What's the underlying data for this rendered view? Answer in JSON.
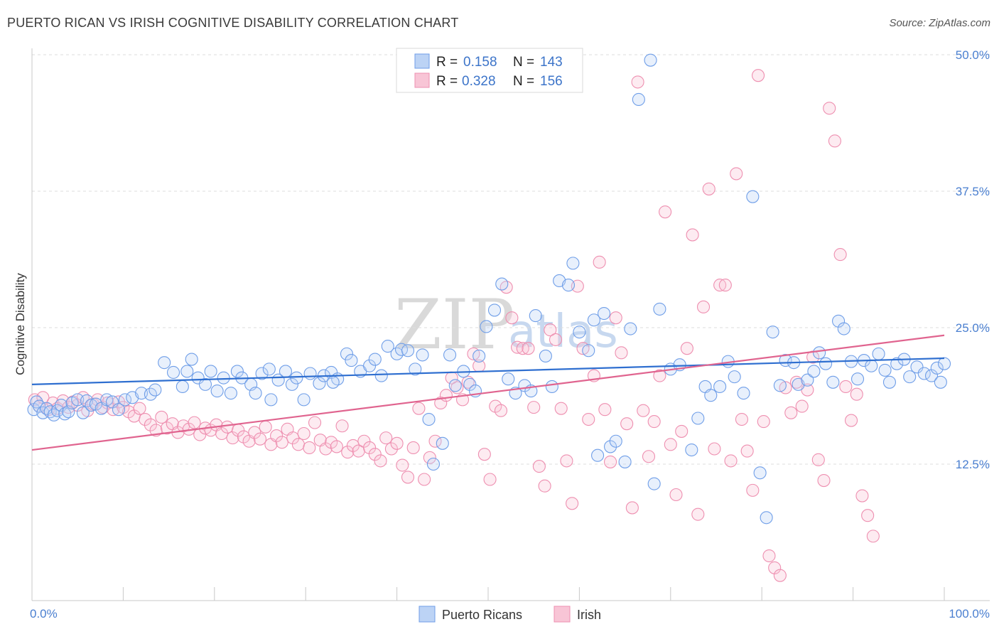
{
  "header": {
    "title": "PUERTO RICAN VS IRISH COGNITIVE DISABILITY CORRELATION CHART",
    "source": "Source: ZipAtlas.com"
  },
  "watermark": {
    "left": "ZIP",
    "right": "atlas"
  },
  "legend": {
    "r_label": "R =",
    "n_label": "N =",
    "entries": [
      {
        "r": "0.158",
        "n": "143"
      },
      {
        "r": "0.328",
        "n": "156"
      }
    ]
  },
  "chart_data": {
    "type": "scatter",
    "title": "PUERTO RICAN VS IRISH COGNITIVE DISABILITY CORRELATION CHART",
    "xlabel": "",
    "ylabel": "Cognitive Disability",
    "xlim": [
      0,
      100
    ],
    "ylim": [
      0,
      50
    ],
    "x_tick_labels": [
      "0.0%",
      "100.0%"
    ],
    "y_ticks": [
      12.5,
      25.0,
      37.5,
      50.0
    ],
    "y_tick_labels": [
      "12.5%",
      "25.0%",
      "37.5%",
      "50.0%"
    ],
    "grid": "horizontal dashed",
    "legend_position": "top-center",
    "colors": {
      "blue": "#6f9ee8",
      "pink": "#ee8fb0",
      "blue_line": "#2f6fd0",
      "pink_line": "#e0648f"
    },
    "series": [
      {
        "name": "Puerto Ricans",
        "color": "#6f9ee8",
        "trend": {
          "x": [
            0,
            100
          ],
          "y": [
            19.8,
            22.2
          ]
        },
        "points": [
          [
            0.2,
            17.5
          ],
          [
            0.5,
            18.2
          ],
          [
            0.8,
            17.8
          ],
          [
            1.2,
            17.2
          ],
          [
            1.6,
            17.6
          ],
          [
            2.0,
            17.3
          ],
          [
            2.4,
            17.0
          ],
          [
            2.8,
            17.4
          ],
          [
            3.2,
            17.9
          ],
          [
            3.6,
            17.1
          ],
          [
            4.0,
            17.3
          ],
          [
            4.4,
            18.1
          ],
          [
            5.0,
            18.4
          ],
          [
            5.6,
            17.2
          ],
          [
            6.0,
            18.3
          ],
          [
            6.5,
            17.9
          ],
          [
            7.0,
            18.0
          ],
          [
            7.6,
            17.6
          ],
          [
            8.2,
            18.4
          ],
          [
            8.8,
            18.2
          ],
          [
            9.5,
            17.5
          ],
          [
            10.2,
            18.4
          ],
          [
            11.0,
            18.6
          ],
          [
            12.0,
            19.0
          ],
          [
            13.0,
            18.9
          ],
          [
            13.5,
            19.3
          ],
          [
            14.5,
            21.8
          ],
          [
            15.5,
            20.9
          ],
          [
            16.5,
            19.6
          ],
          [
            17.0,
            21.0
          ],
          [
            17.5,
            22.1
          ],
          [
            18.2,
            20.4
          ],
          [
            19.0,
            19.8
          ],
          [
            19.6,
            21.0
          ],
          [
            20.3,
            19.2
          ],
          [
            21.0,
            20.4
          ],
          [
            21.8,
            19.0
          ],
          [
            22.5,
            21.0
          ],
          [
            23.0,
            20.4
          ],
          [
            24.0,
            19.8
          ],
          [
            24.5,
            19.0
          ],
          [
            25.2,
            20.8
          ],
          [
            26.0,
            21.2
          ],
          [
            27.0,
            20.2
          ],
          [
            27.8,
            21.0
          ],
          [
            28.5,
            19.8
          ],
          [
            29.0,
            20.4
          ],
          [
            29.8,
            18.4
          ],
          [
            30.5,
            20.8
          ],
          [
            31.5,
            19.9
          ],
          [
            32.0,
            20.6
          ],
          [
            32.8,
            20.9
          ],
          [
            33.5,
            20.3
          ],
          [
            34.5,
            22.6
          ],
          [
            35.0,
            22.0
          ],
          [
            36.0,
            21.0
          ],
          [
            37.0,
            21.5
          ],
          [
            37.6,
            22.1
          ],
          [
            38.3,
            20.6
          ],
          [
            39.0,
            23.3
          ],
          [
            40.0,
            22.6
          ],
          [
            40.5,
            23.0
          ],
          [
            41.2,
            22.9
          ],
          [
            42.0,
            21.2
          ],
          [
            42.8,
            22.5
          ],
          [
            43.5,
            16.6
          ],
          [
            44.0,
            12.5
          ],
          [
            45.0,
            14.4
          ],
          [
            45.8,
            22.5
          ],
          [
            46.4,
            19.7
          ],
          [
            47.3,
            21.0
          ],
          [
            48.0,
            19.8
          ],
          [
            49.0,
            22.4
          ],
          [
            49.8,
            25.1
          ],
          [
            50.7,
            26.6
          ],
          [
            51.5,
            29.0
          ],
          [
            52.2,
            20.3
          ],
          [
            53.0,
            19.0
          ],
          [
            54.0,
            19.7
          ],
          [
            54.7,
            19.2
          ],
          [
            55.2,
            26.1
          ],
          [
            56.3,
            22.4
          ],
          [
            57.0,
            19.6
          ],
          [
            57.8,
            29.3
          ],
          [
            58.8,
            28.9
          ],
          [
            59.3,
            30.9
          ],
          [
            60.0,
            24.6
          ],
          [
            61.0,
            22.9
          ],
          [
            61.6,
            25.7
          ],
          [
            62.0,
            13.3
          ],
          [
            62.7,
            26.3
          ],
          [
            63.4,
            14.1
          ],
          [
            64.0,
            14.6
          ],
          [
            65.0,
            12.7
          ],
          [
            65.6,
            24.9
          ],
          [
            66.5,
            45.9
          ],
          [
            67.8,
            49.5
          ],
          [
            68.2,
            10.7
          ],
          [
            68.8,
            26.7
          ],
          [
            70.0,
            21.2
          ],
          [
            71.0,
            21.6
          ],
          [
            72.3,
            13.8
          ],
          [
            73.0,
            16.7
          ],
          [
            73.8,
            19.6
          ],
          [
            74.4,
            18.8
          ],
          [
            75.4,
            19.6
          ],
          [
            76.3,
            21.9
          ],
          [
            77.0,
            20.5
          ],
          [
            78.0,
            19.0
          ],
          [
            79.0,
            37.0
          ],
          [
            79.8,
            11.7
          ],
          [
            80.5,
            7.6
          ],
          [
            81.2,
            24.6
          ],
          [
            82.0,
            19.7
          ],
          [
            82.6,
            22.0
          ],
          [
            83.5,
            21.8
          ],
          [
            84.0,
            19.8
          ],
          [
            85.0,
            20.2
          ],
          [
            85.7,
            21.0
          ],
          [
            86.3,
            22.7
          ],
          [
            87.0,
            21.7
          ],
          [
            87.8,
            20.0
          ],
          [
            88.4,
            25.6
          ],
          [
            89.0,
            24.9
          ],
          [
            89.8,
            21.9
          ],
          [
            90.5,
            20.3
          ],
          [
            91.2,
            22.0
          ],
          [
            92.0,
            21.5
          ],
          [
            92.8,
            22.6
          ],
          [
            93.5,
            21.1
          ],
          [
            94.0,
            20.0
          ],
          [
            94.8,
            21.7
          ],
          [
            95.6,
            22.1
          ],
          [
            96.2,
            20.5
          ],
          [
            97.0,
            21.4
          ],
          [
            97.8,
            20.8
          ],
          [
            98.6,
            20.6
          ],
          [
            99.2,
            21.3
          ],
          [
            99.6,
            20.0
          ],
          [
            100.0,
            21.7
          ],
          [
            26.2,
            18.4
          ],
          [
            33.0,
            20.0
          ],
          [
            48.6,
            19.2
          ]
        ]
      },
      {
        "name": "Irish",
        "color": "#ee8fb0",
        "trend": {
          "x": [
            0,
            100
          ],
          "y": [
            13.8,
            24.3
          ]
        },
        "points": [
          [
            0.3,
            18.4
          ],
          [
            0.8,
            17.8
          ],
          [
            1.2,
            18.6
          ],
          [
            1.8,
            17.5
          ],
          [
            2.3,
            18.1
          ],
          [
            2.8,
            17.6
          ],
          [
            3.4,
            18.3
          ],
          [
            4.0,
            17.7
          ],
          [
            4.5,
            18.2
          ],
          [
            5.0,
            17.9
          ],
          [
            5.6,
            18.6
          ],
          [
            6.1,
            17.4
          ],
          [
            6.7,
            18.0
          ],
          [
            7.2,
            18.4
          ],
          [
            7.8,
            17.7
          ],
          [
            8.3,
            18.1
          ],
          [
            8.9,
            17.5
          ],
          [
            9.5,
            18.2
          ],
          [
            10.0,
            17.7
          ],
          [
            10.6,
            17.3
          ],
          [
            11.2,
            16.9
          ],
          [
            11.8,
            17.6
          ],
          [
            12.4,
            16.6
          ],
          [
            13.0,
            16.1
          ],
          [
            13.6,
            15.6
          ],
          [
            14.2,
            16.8
          ],
          [
            14.8,
            15.8
          ],
          [
            15.4,
            16.2
          ],
          [
            16.0,
            15.4
          ],
          [
            16.6,
            16.0
          ],
          [
            17.2,
            15.7
          ],
          [
            17.8,
            16.3
          ],
          [
            18.4,
            15.2
          ],
          [
            19.0,
            15.8
          ],
          [
            19.6,
            15.6
          ],
          [
            20.2,
            16.1
          ],
          [
            20.8,
            15.3
          ],
          [
            21.4,
            15.9
          ],
          [
            22.0,
            14.9
          ],
          [
            22.6,
            15.6
          ],
          [
            23.2,
            15.0
          ],
          [
            23.8,
            14.6
          ],
          [
            24.4,
            15.4
          ],
          [
            25.0,
            14.8
          ],
          [
            25.6,
            15.9
          ],
          [
            26.2,
            14.3
          ],
          [
            26.8,
            15.1
          ],
          [
            27.4,
            14.5
          ],
          [
            28.0,
            15.7
          ],
          [
            28.6,
            14.9
          ],
          [
            29.2,
            14.3
          ],
          [
            29.8,
            15.3
          ],
          [
            30.4,
            14.0
          ],
          [
            31.0,
            16.3
          ],
          [
            31.6,
            14.7
          ],
          [
            32.2,
            13.9
          ],
          [
            32.8,
            14.5
          ],
          [
            33.4,
            14.1
          ],
          [
            34.0,
            16.0
          ],
          [
            34.6,
            13.6
          ],
          [
            35.2,
            14.2
          ],
          [
            35.8,
            13.7
          ],
          [
            36.4,
            14.6
          ],
          [
            37.0,
            14.0
          ],
          [
            37.6,
            13.4
          ],
          [
            38.2,
            12.8
          ],
          [
            38.8,
            14.9
          ],
          [
            39.4,
            13.9
          ],
          [
            40.0,
            14.4
          ],
          [
            40.6,
            12.4
          ],
          [
            41.2,
            11.3
          ],
          [
            41.8,
            14.0
          ],
          [
            42.4,
            17.6
          ],
          [
            43.0,
            11.1
          ],
          [
            43.6,
            13.1
          ],
          [
            44.2,
            14.6
          ],
          [
            44.8,
            18.1
          ],
          [
            45.4,
            18.8
          ],
          [
            46.0,
            20.4
          ],
          [
            46.6,
            19.5
          ],
          [
            47.2,
            18.4
          ],
          [
            47.8,
            20.0
          ],
          [
            48.4,
            22.6
          ],
          [
            49.0,
            21.5
          ],
          [
            49.6,
            13.4
          ],
          [
            50.2,
            11.1
          ],
          [
            50.8,
            17.8
          ],
          [
            51.4,
            17.4
          ],
          [
            52.0,
            28.7
          ],
          [
            52.6,
            25.9
          ],
          [
            53.2,
            23.2
          ],
          [
            53.8,
            23.1
          ],
          [
            54.4,
            23.1
          ],
          [
            55.0,
            17.7
          ],
          [
            55.6,
            12.3
          ],
          [
            56.2,
            10.5
          ],
          [
            56.8,
            24.8
          ],
          [
            57.4,
            23.9
          ],
          [
            58.0,
            17.6
          ],
          [
            58.6,
            12.8
          ],
          [
            59.2,
            8.9
          ],
          [
            59.8,
            28.8
          ],
          [
            60.4,
            23.1
          ],
          [
            61.0,
            16.6
          ],
          [
            61.6,
            20.6
          ],
          [
            62.2,
            31.0
          ],
          [
            62.8,
            17.5
          ],
          [
            63.4,
            12.7
          ],
          [
            64.0,
            25.9
          ],
          [
            64.6,
            22.7
          ],
          [
            65.2,
            16.2
          ],
          [
            65.8,
            8.5
          ],
          [
            66.4,
            47.5
          ],
          [
            67.0,
            17.4
          ],
          [
            67.6,
            13.2
          ],
          [
            68.2,
            16.4
          ],
          [
            68.8,
            20.6
          ],
          [
            69.4,
            35.6
          ],
          [
            70.0,
            14.3
          ],
          [
            70.6,
            9.7
          ],
          [
            71.2,
            15.5
          ],
          [
            71.8,
            23.1
          ],
          [
            72.4,
            33.5
          ],
          [
            73.0,
            7.9
          ],
          [
            73.6,
            26.9
          ],
          [
            74.2,
            37.7
          ],
          [
            74.8,
            13.9
          ],
          [
            75.4,
            28.9
          ],
          [
            76.0,
            28.9
          ],
          [
            76.6,
            12.8
          ],
          [
            77.2,
            39.1
          ],
          [
            77.8,
            16.6
          ],
          [
            78.4,
            13.7
          ],
          [
            79.0,
            10.1
          ],
          [
            79.6,
            48.1
          ],
          [
            80.2,
            16.4
          ],
          [
            80.8,
            4.1
          ],
          [
            81.4,
            3.0
          ],
          [
            82.0,
            2.3
          ],
          [
            82.6,
            19.5
          ],
          [
            83.2,
            17.2
          ],
          [
            83.8,
            20.0
          ],
          [
            84.4,
            17.8
          ],
          [
            85.0,
            19.3
          ],
          [
            85.6,
            22.3
          ],
          [
            86.2,
            12.9
          ],
          [
            86.8,
            11.0
          ],
          [
            87.4,
            45.1
          ],
          [
            88.0,
            42.1
          ],
          [
            88.6,
            31.7
          ],
          [
            89.2,
            19.6
          ],
          [
            89.8,
            16.5
          ],
          [
            90.4,
            18.9
          ],
          [
            91.0,
            9.6
          ],
          [
            91.6,
            7.8
          ],
          [
            92.2,
            5.9
          ]
        ]
      }
    ]
  },
  "bottom_legend": [
    {
      "label": "Puerto Ricans"
    },
    {
      "label": "Irish"
    }
  ]
}
